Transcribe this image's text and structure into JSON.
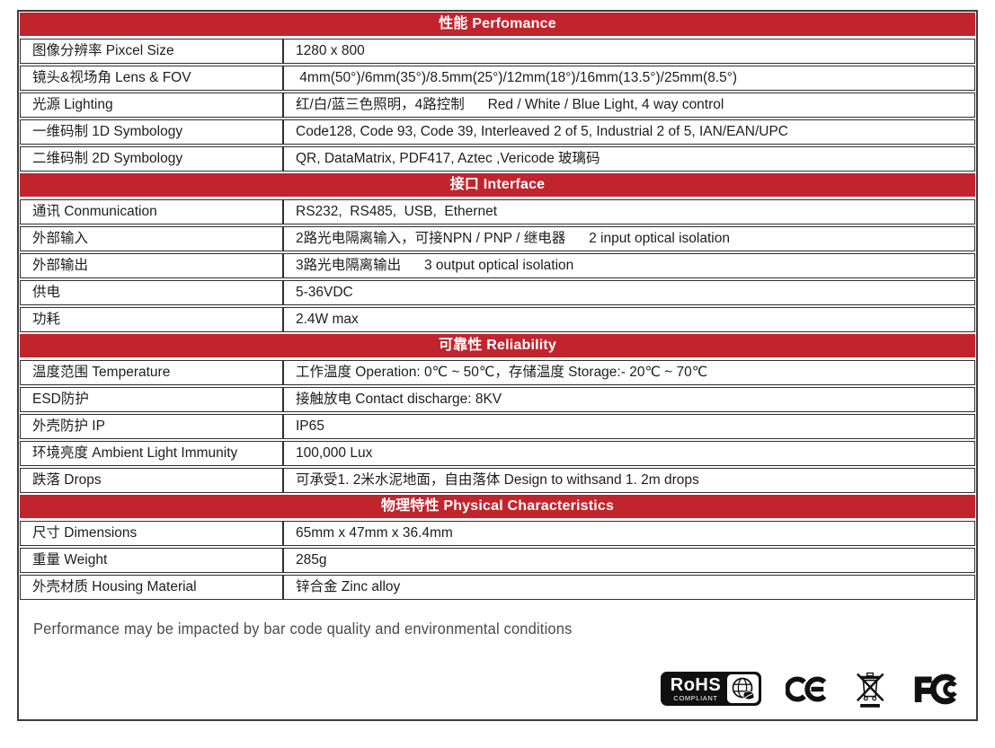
{
  "colors": {
    "header_red": "#c2242d",
    "outer_border": "#3d3d3d",
    "row_border": "#2e2e2e",
    "text": "#1d1d1d",
    "note_text": "#4a4a4a",
    "logo_black": "#101010"
  },
  "table": {
    "sections": [
      {
        "header": "性能 Perfomance",
        "rows": [
          {
            "label": "图像分辨率 Pixcel Size",
            "value": "1280 x 800"
          },
          {
            "label": "镜头&视场角 Lens & FOV",
            "value": " 4mm(50°)/6mm(35°)/8.5mm(25°)/12mm(18°)/16mm(13.5°)/25mm(8.5°)"
          },
          {
            "label": "光源 Lighting",
            "value": "红/白/蓝三色照明，4路控制      Red / White / Blue Light, 4 way control"
          },
          {
            "label": "一维码制 1D Symbology",
            "value": "Code128, Code 93, Code 39, Interleaved 2 of 5, Industrial 2 of 5, IAN/EAN/UPC"
          },
          {
            "label": "二维码制 2D Symbology",
            "value": "QR, DataMatrix, PDF417, Aztec ,Vericode 玻璃码"
          }
        ]
      },
      {
        "header": "接口 Interface",
        "rows": [
          {
            "label": "通讯 Conmunication",
            "value": "RS232,  RS485,  USB,  Ethernet"
          },
          {
            "label": "外部输入",
            "value": "2路光电隔离输入，可接NPN / PNP / 继电器      2 input optical isolation"
          },
          {
            "label": "外部输出",
            "value": "3路光电隔离输出      3 output optical isolation"
          },
          {
            "label": "供电",
            "value": "5-36VDC"
          },
          {
            "label": "功耗",
            "value": "2.4W max"
          }
        ]
      },
      {
        "header": "可靠性 Reliability",
        "rows": [
          {
            "label": "温度范围 Temperature",
            "value": "工作温度 Operation: 0℃ ~ 50℃，存储温度 Storage:- 20℃ ~ 70℃"
          },
          {
            "label": "ESD防护",
            "value": "接触放电 Contact discharge: 8KV"
          },
          {
            "label": "外壳防护 IP",
            "value": "IP65"
          },
          {
            "label": "环境亮度 Ambient Light Immunity",
            "value": "100,000 Lux"
          },
          {
            "label": "跌落 Drops",
            "value": "可承受1. 2米水泥地面，自由落体 Design to withsand 1. 2m drops"
          }
        ]
      },
      {
        "header": "物理特性 Physical Characteristics",
        "rows": [
          {
            "label": "尺寸 Dimensions",
            "value": "65mm x 47mm x 36.4mm"
          },
          {
            "label": "重量 Weight",
            "value": "285g"
          },
          {
            "label": "外壳材质 Housing Material",
            "value": "锌合金 Zinc alloy"
          }
        ]
      }
    ],
    "footer_note": "Performance may be impacted by bar code quality and environmental conditions"
  },
  "logos": {
    "rohs": {
      "title": "RoHS",
      "subtitle": "COMPLIANT"
    },
    "ce": {
      "label": "CE"
    },
    "weee": {
      "label": "crossed-out wheeled bin"
    },
    "fcc": {
      "label": "FC"
    }
  }
}
